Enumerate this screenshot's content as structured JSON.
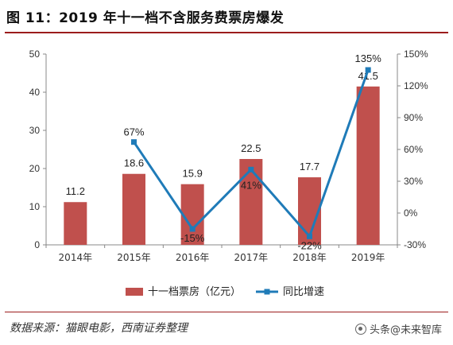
{
  "title": "图 11：2019 年十一档不含服务费票房爆发",
  "source": "数据来源：猫眼电影，西南证券整理",
  "watermark": "头条@未来智库",
  "colors": {
    "bar": "#c0504d",
    "line": "#1f7bb8",
    "accent": "#9b1c1c"
  },
  "chart_data": {
    "type": "bar",
    "categories": [
      "2014年",
      "2015年",
      "2016年",
      "2017年",
      "2018年",
      "2019年"
    ],
    "series": [
      {
        "name": "十一档票房（亿元）",
        "type": "bar",
        "axis": "left",
        "values": [
          11.2,
          18.6,
          15.9,
          22.5,
          17.7,
          41.5
        ],
        "labels": [
          "11.2",
          "18.6",
          "15.9",
          "22.5",
          "17.7",
          "41.5"
        ]
      },
      {
        "name": "同比增速",
        "type": "line",
        "axis": "right",
        "values": [
          null,
          67,
          -15,
          41,
          -22,
          135
        ],
        "labels": [
          "",
          "67%",
          "-15%",
          "41%",
          "-22%",
          "135%"
        ]
      }
    ],
    "y_left": {
      "lim": [
        0,
        50
      ],
      "ticks": [
        "0",
        "10",
        "20",
        "30",
        "40",
        "50"
      ],
      "tick_values": [
        0,
        10,
        20,
        30,
        40,
        50
      ]
    },
    "y_right": {
      "lim": [
        -30,
        150
      ],
      "ticks": [
        "-30%",
        "0%",
        "30%",
        "60%",
        "90%",
        "120%",
        "150%"
      ],
      "tick_values": [
        -30,
        0,
        30,
        60,
        90,
        120,
        150
      ]
    },
    "legend_position": "bottom",
    "grid": false
  }
}
